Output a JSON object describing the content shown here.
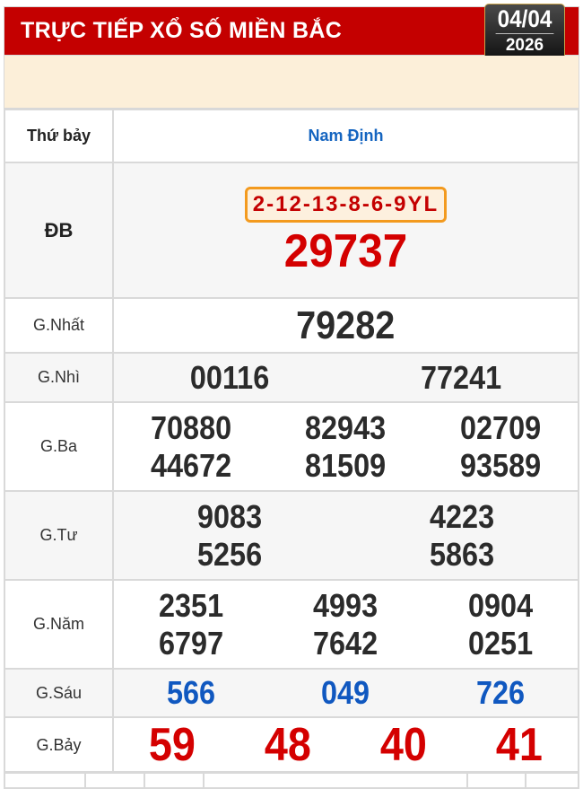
{
  "header": {
    "title": "TRỰC TIẾP XỔ SỐ MIỀN BẮC",
    "date": "04/04",
    "year": "2026"
  },
  "table": {
    "day": "Thứ bảy",
    "province": "Nam Định",
    "rows": [
      {
        "label": "ĐB",
        "code": "2-12-13-8-6-9YL",
        "numbers": [
          "29737"
        ]
      },
      {
        "label": "G.Nhất",
        "numbers": [
          "79282"
        ]
      },
      {
        "label": "G.Nhì",
        "numbers": [
          "00116",
          "77241"
        ]
      },
      {
        "label": "G.Ba",
        "numbers": [
          "70880",
          "82943",
          "02709",
          "44672",
          "81509",
          "93589"
        ]
      },
      {
        "label": "G.Tư",
        "numbers": [
          "9083",
          "4223",
          "5256",
          "5863"
        ]
      },
      {
        "label": "G.Năm",
        "numbers": [
          "2351",
          "4993",
          "0904",
          "6797",
          "7642",
          "0251"
        ]
      },
      {
        "label": "G.Sáu",
        "numbers": [
          "566",
          "049",
          "726"
        ]
      },
      {
        "label": "G.Bảy",
        "numbers": [
          "59",
          "48",
          "40",
          "41"
        ]
      }
    ]
  },
  "colors": {
    "header": "#c40000",
    "special": "#d40000",
    "sau": "#1058c0",
    "code_border": "#f39a1e"
  }
}
